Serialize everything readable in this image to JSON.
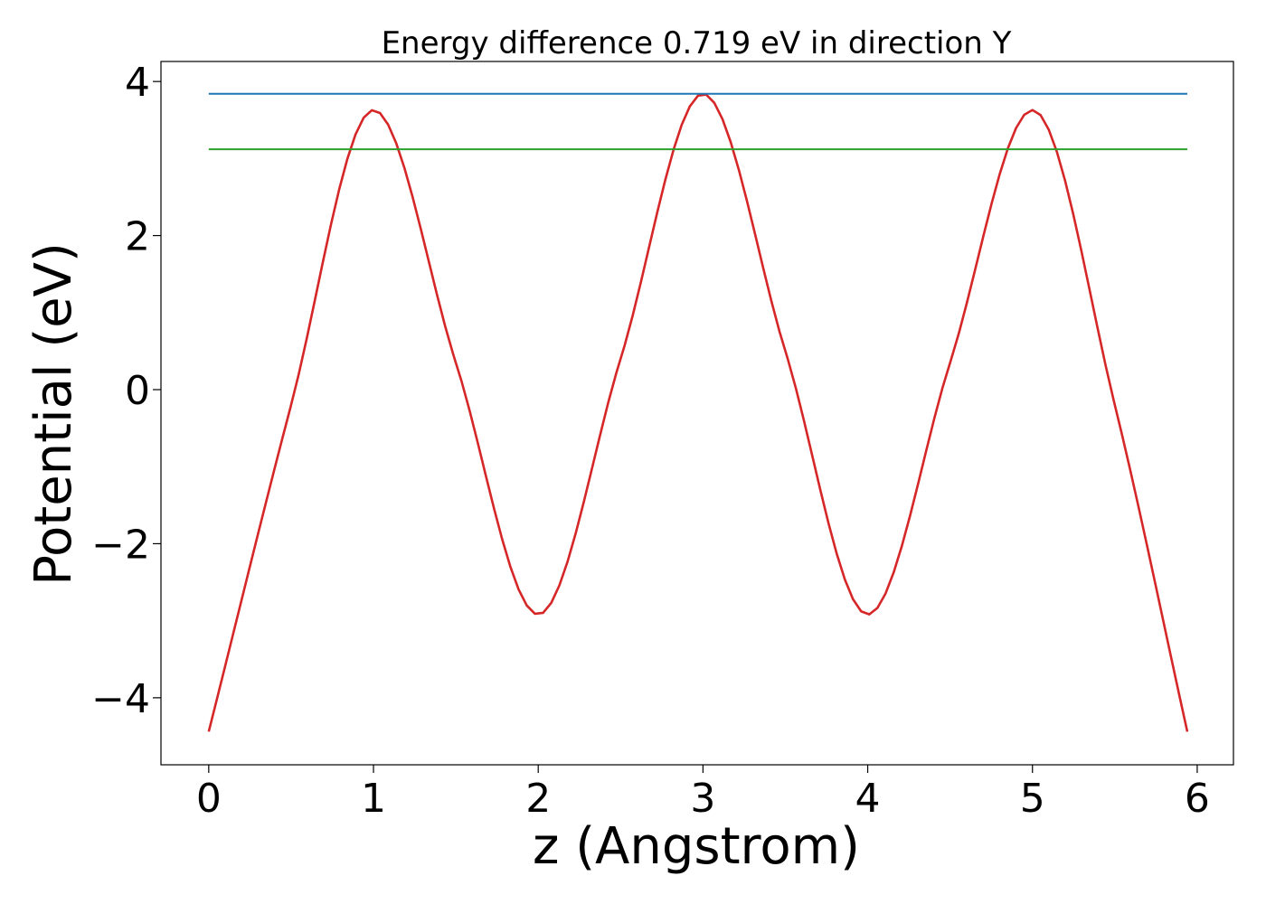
{
  "chart_data": {
    "type": "line",
    "title": "Energy difference 0.719 eV in direction Y",
    "xlabel": "z (Angstrom)",
    "ylabel": "Potential (eV)",
    "xlim": [
      -0.29,
      6.22
    ],
    "ylim": [
      -4.87,
      4.26
    ],
    "xticks": [
      0,
      1,
      2,
      3,
      4,
      5,
      6
    ],
    "yticks": [
      -4,
      -2,
      0,
      2,
      4
    ],
    "grid": false,
    "legend": "none",
    "x_start": 0,
    "x_end": 5.94,
    "samples": 120,
    "series": [
      {
        "type": "curve",
        "color": "#d62728",
        "points": [
          [
            0,
            -4.44
          ],
          [
            0.5,
            -0.2
          ],
          [
            1.0,
            3.63
          ],
          [
            1.5,
            0.35
          ],
          [
            2.0,
            -2.92
          ],
          [
            2.5,
            0.4
          ],
          [
            3.0,
            3.84
          ],
          [
            3.5,
            0.5
          ],
          [
            4.0,
            -2.92
          ],
          [
            4.5,
            0.35
          ],
          [
            5.0,
            3.63
          ],
          [
            5.5,
            -0.2
          ],
          [
            5.94,
            -4.44
          ]
        ]
      },
      {
        "type": "hline",
        "color": "#1f77b4",
        "y": 3.84,
        "x": [
          0,
          5.94
        ]
      },
      {
        "type": "hline",
        "color": "#2ca02c",
        "y": 3.12,
        "x": [
          0,
          5.94
        ]
      }
    ]
  }
}
